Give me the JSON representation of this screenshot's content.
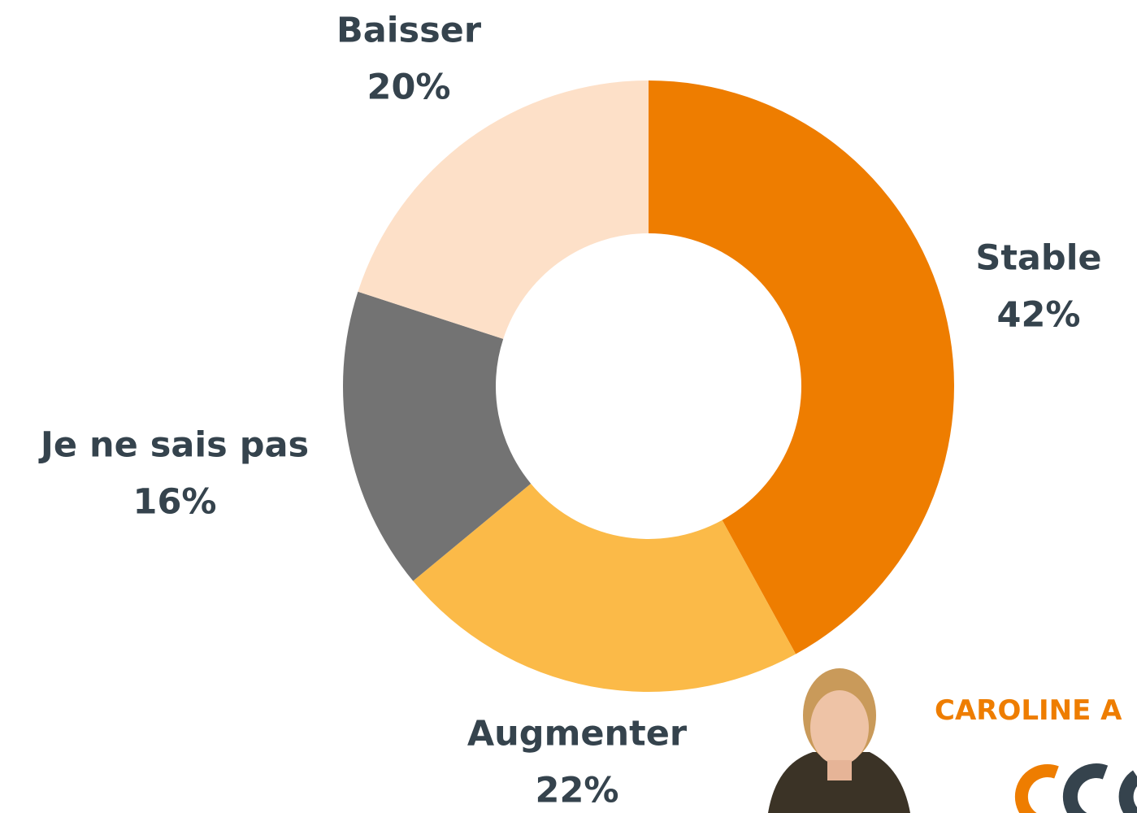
{
  "chart_data": {
    "type": "donut",
    "categories": [
      "Stable",
      "Augmenter",
      "Je ne sais pas",
      "Baisser"
    ],
    "values": [
      42,
      22,
      16,
      20
    ],
    "value_labels": [
      "42%",
      "22%",
      "16%",
      "20%"
    ],
    "colors": [
      "#ee7d00",
      "#fbba48",
      "#737373",
      "#fde0c8"
    ]
  },
  "byline": "CAROLINE A"
}
